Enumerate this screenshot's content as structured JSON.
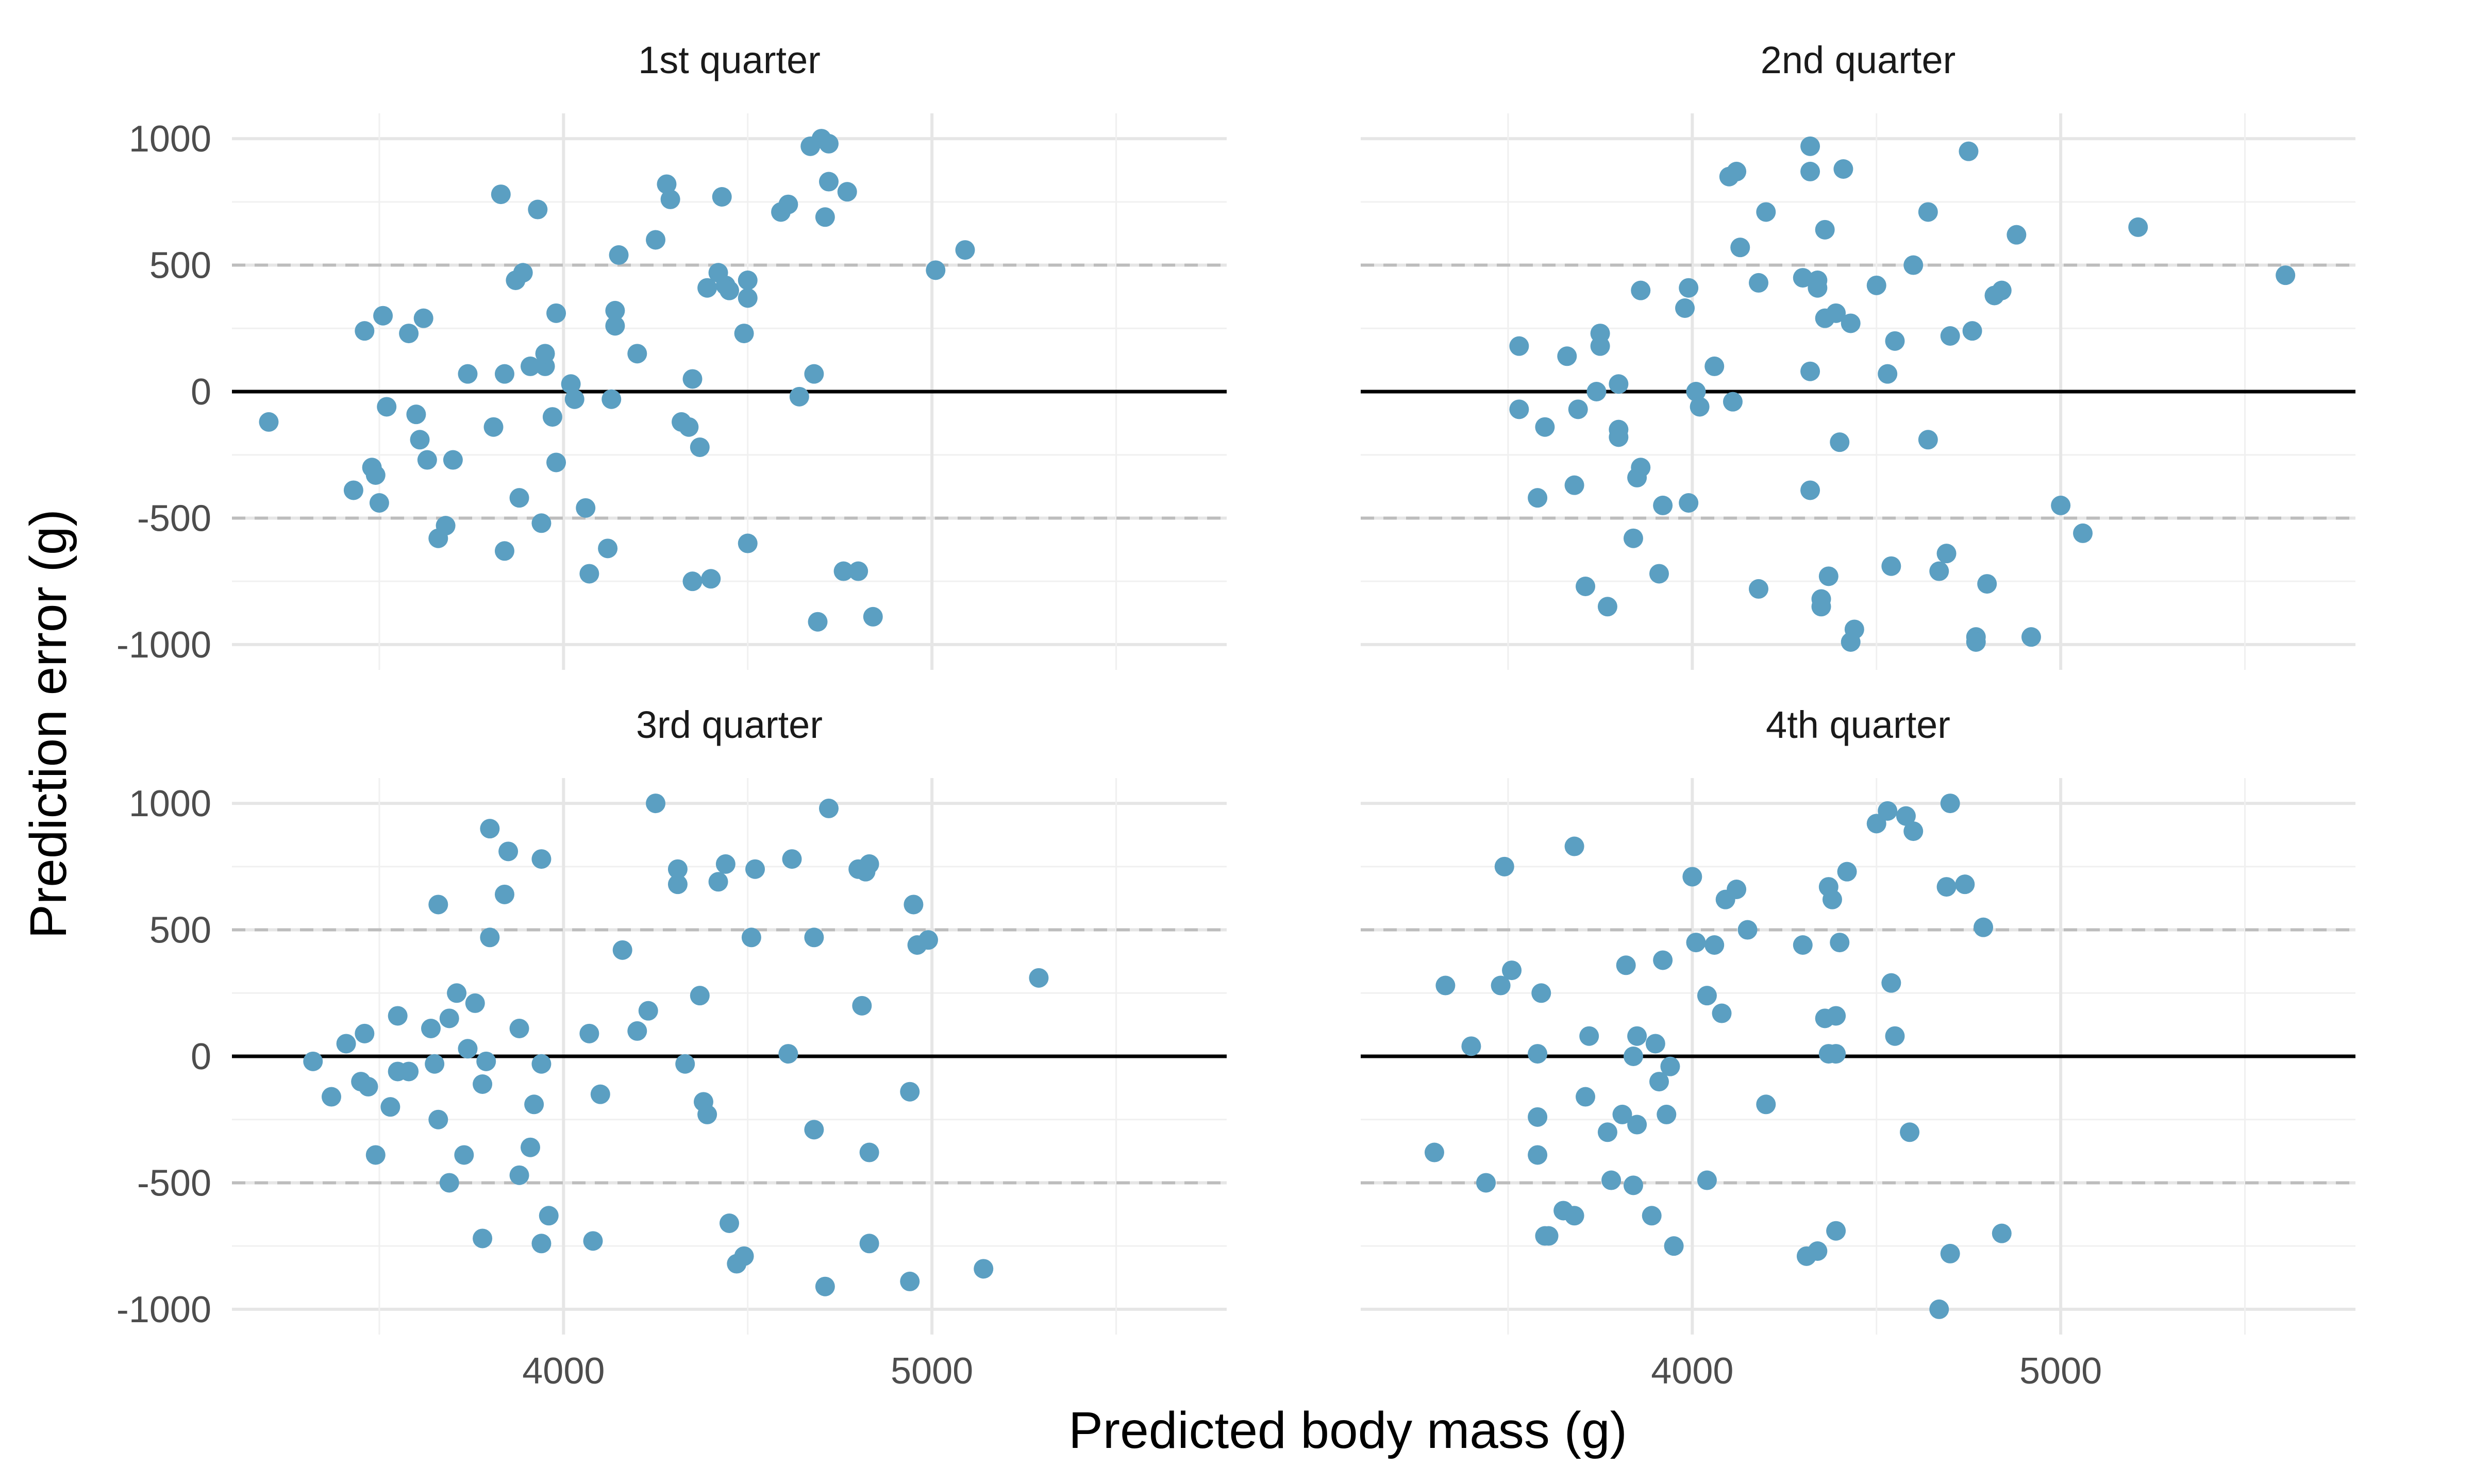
{
  "chart_data": {
    "type": "scatter",
    "xlabel": "Predicted body mass (g)",
    "ylabel": "Prediction error (g)",
    "x_ticks": [
      4000,
      5000
    ],
    "y_ticks": [
      -1000,
      -500,
      0,
      500,
      1000
    ],
    "xlim": [
      3100,
      5800
    ],
    "ylim": [
      -1100,
      1100
    ],
    "reference_lines": {
      "solid": 0,
      "dashed": [
        -500,
        500
      ]
    },
    "point_color": "#5B9FC2",
    "grid": true,
    "panels": [
      {
        "title": "1st quarter",
        "points": [
          [
            3200,
            -120
          ],
          [
            3430,
            -390
          ],
          [
            3460,
            240
          ],
          [
            3480,
            -300
          ],
          [
            3490,
            -330
          ],
          [
            3500,
            -440
          ],
          [
            3510,
            300
          ],
          [
            3520,
            -60
          ],
          [
            3580,
            230
          ],
          [
            3600,
            -90
          ],
          [
            3610,
            -190
          ],
          [
            3620,
            290
          ],
          [
            3630,
            -270
          ],
          [
            3660,
            -580
          ],
          [
            3680,
            -530
          ],
          [
            3700,
            -270
          ],
          [
            3740,
            70
          ],
          [
            3810,
            -140
          ],
          [
            3830,
            780
          ],
          [
            3840,
            -630
          ],
          [
            3840,
            70
          ],
          [
            3870,
            440
          ],
          [
            3880,
            -420
          ],
          [
            3890,
            470
          ],
          [
            3910,
            100
          ],
          [
            3930,
            720
          ],
          [
            3940,
            -520
          ],
          [
            3950,
            100
          ],
          [
            3950,
            150
          ],
          [
            3970,
            -100
          ],
          [
            3980,
            -280
          ],
          [
            3980,
            310
          ],
          [
            4020,
            30
          ],
          [
            4030,
            -30
          ],
          [
            4060,
            -460
          ],
          [
            4070,
            -720
          ],
          [
            4120,
            -620
          ],
          [
            4130,
            -30
          ],
          [
            4140,
            320
          ],
          [
            4140,
            260
          ],
          [
            4150,
            540
          ],
          [
            4200,
            150
          ],
          [
            4250,
            600
          ],
          [
            4280,
            820
          ],
          [
            4290,
            760
          ],
          [
            4320,
            -120
          ],
          [
            4340,
            -140
          ],
          [
            4350,
            50
          ],
          [
            4350,
            -750
          ],
          [
            4370,
            -220
          ],
          [
            4390,
            410
          ],
          [
            4400,
            -740
          ],
          [
            4420,
            470
          ],
          [
            4430,
            770
          ],
          [
            4440,
            420
          ],
          [
            4450,
            400
          ],
          [
            4490,
            230
          ],
          [
            4500,
            440
          ],
          [
            4500,
            370
          ],
          [
            4500,
            -600
          ],
          [
            4590,
            710
          ],
          [
            4610,
            740
          ],
          [
            4640,
            -20
          ],
          [
            4670,
            970
          ],
          [
            4680,
            70
          ],
          [
            4690,
            -910
          ],
          [
            4700,
            1000
          ],
          [
            4710,
            690
          ],
          [
            4720,
            980
          ],
          [
            4720,
            830
          ],
          [
            4760,
            -710
          ],
          [
            4770,
            790
          ],
          [
            4800,
            -710
          ],
          [
            4840,
            -890
          ],
          [
            5010,
            480
          ],
          [
            5090,
            560
          ]
        ]
      },
      {
        "title": "2nd quarter",
        "points": [
          [
            3530,
            180
          ],
          [
            3530,
            -70
          ],
          [
            3580,
            -420
          ],
          [
            3600,
            -140
          ],
          [
            3660,
            140
          ],
          [
            3680,
            -370
          ],
          [
            3690,
            -70
          ],
          [
            3710,
            -770
          ],
          [
            3740,
            0
          ],
          [
            3750,
            180
          ],
          [
            3750,
            230
          ],
          [
            3770,
            -850
          ],
          [
            3800,
            30
          ],
          [
            3800,
            -150
          ],
          [
            3800,
            -180
          ],
          [
            3840,
            -580
          ],
          [
            3850,
            -340
          ],
          [
            3860,
            -300
          ],
          [
            3860,
            400
          ],
          [
            3910,
            -720
          ],
          [
            3920,
            -450
          ],
          [
            3980,
            330
          ],
          [
            3990,
            410
          ],
          [
            3990,
            -440
          ],
          [
            4010,
            0
          ],
          [
            4020,
            -60
          ],
          [
            4060,
            100
          ],
          [
            4100,
            850
          ],
          [
            4110,
            -40
          ],
          [
            4120,
            870
          ],
          [
            4130,
            570
          ],
          [
            4180,
            430
          ],
          [
            4180,
            -780
          ],
          [
            4200,
            710
          ],
          [
            4300,
            450
          ],
          [
            4320,
            970
          ],
          [
            4320,
            -390
          ],
          [
            4320,
            870
          ],
          [
            4320,
            80
          ],
          [
            4340,
            410
          ],
          [
            4340,
            440
          ],
          [
            4350,
            -820
          ],
          [
            4350,
            -850
          ],
          [
            4360,
            290
          ],
          [
            4360,
            640
          ],
          [
            4370,
            -730
          ],
          [
            4390,
            310
          ],
          [
            4400,
            -200
          ],
          [
            4410,
            880
          ],
          [
            4430,
            -990
          ],
          [
            4430,
            270
          ],
          [
            4440,
            -940
          ],
          [
            4500,
            420
          ],
          [
            4530,
            70
          ],
          [
            4540,
            -690
          ],
          [
            4550,
            200
          ],
          [
            4600,
            500
          ],
          [
            4640,
            710
          ],
          [
            4640,
            -190
          ],
          [
            4670,
            -710
          ],
          [
            4690,
            -640
          ],
          [
            4700,
            220
          ],
          [
            4750,
            950
          ],
          [
            4760,
            240
          ],
          [
            4770,
            -970
          ],
          [
            4770,
            -990
          ],
          [
            4800,
            -760
          ],
          [
            4820,
            380
          ],
          [
            4840,
            400
          ],
          [
            4880,
            620
          ],
          [
            4920,
            -970
          ],
          [
            5000,
            -450
          ],
          [
            5060,
            -560
          ],
          [
            5210,
            650
          ],
          [
            5610,
            460
          ]
        ]
      },
      {
        "title": "3rd quarter",
        "points": [
          [
            3320,
            -20
          ],
          [
            3370,
            -160
          ],
          [
            3410,
            50
          ],
          [
            3450,
            -100
          ],
          [
            3460,
            90
          ],
          [
            3470,
            -120
          ],
          [
            3490,
            -390
          ],
          [
            3530,
            -200
          ],
          [
            3550,
            160
          ],
          [
            3550,
            -60
          ],
          [
            3580,
            -60
          ],
          [
            3640,
            110
          ],
          [
            3650,
            -30
          ],
          [
            3660,
            600
          ],
          [
            3660,
            -250
          ],
          [
            3690,
            150
          ],
          [
            3690,
            -500
          ],
          [
            3710,
            250
          ],
          [
            3730,
            -390
          ],
          [
            3740,
            30
          ],
          [
            3760,
            210
          ],
          [
            3780,
            -720
          ],
          [
            3780,
            -110
          ],
          [
            3790,
            -20
          ],
          [
            3800,
            900
          ],
          [
            3800,
            470
          ],
          [
            3840,
            640
          ],
          [
            3850,
            810
          ],
          [
            3880,
            110
          ],
          [
            3880,
            -470
          ],
          [
            3910,
            -360
          ],
          [
            3920,
            -190
          ],
          [
            3940,
            780
          ],
          [
            3940,
            -30
          ],
          [
            3940,
            -740
          ],
          [
            3960,
            -630
          ],
          [
            4070,
            90
          ],
          [
            4080,
            -730
          ],
          [
            4100,
            -150
          ],
          [
            4160,
            420
          ],
          [
            4200,
            100
          ],
          [
            4230,
            180
          ],
          [
            4250,
            1000
          ],
          [
            4310,
            680
          ],
          [
            4310,
            740
          ],
          [
            4330,
            -30
          ],
          [
            4370,
            240
          ],
          [
            4380,
            -180
          ],
          [
            4390,
            -230
          ],
          [
            4420,
            690
          ],
          [
            4440,
            760
          ],
          [
            4450,
            -660
          ],
          [
            4470,
            -820
          ],
          [
            4490,
            -790
          ],
          [
            4510,
            470
          ],
          [
            4520,
            740
          ],
          [
            4610,
            10
          ],
          [
            4620,
            780
          ],
          [
            4680,
            -290
          ],
          [
            4680,
            470
          ],
          [
            4710,
            -910
          ],
          [
            4720,
            980
          ],
          [
            4800,
            740
          ],
          [
            4810,
            200
          ],
          [
            4820,
            730
          ],
          [
            4830,
            760
          ],
          [
            4830,
            -380
          ],
          [
            4830,
            -740
          ],
          [
            4940,
            -890
          ],
          [
            4940,
            -140
          ],
          [
            4950,
            600
          ],
          [
            4960,
            440
          ],
          [
            4990,
            460
          ],
          [
            5140,
            -840
          ],
          [
            5290,
            310
          ]
        ]
      },
      {
        "title": "4th quarter",
        "points": [
          [
            3300,
            -380
          ],
          [
            3330,
            280
          ],
          [
            3400,
            40
          ],
          [
            3440,
            -500
          ],
          [
            3480,
            280
          ],
          [
            3490,
            750
          ],
          [
            3510,
            340
          ],
          [
            3580,
            -240
          ],
          [
            3580,
            -390
          ],
          [
            3580,
            10
          ],
          [
            3590,
            250
          ],
          [
            3600,
            -710
          ],
          [
            3610,
            -710
          ],
          [
            3650,
            -610
          ],
          [
            3680,
            -630
          ],
          [
            3680,
            830
          ],
          [
            3710,
            -160
          ],
          [
            3720,
            80
          ],
          [
            3770,
            -300
          ],
          [
            3780,
            -490
          ],
          [
            3810,
            -230
          ],
          [
            3820,
            360
          ],
          [
            3840,
            0
          ],
          [
            3840,
            -510
          ],
          [
            3850,
            80
          ],
          [
            3850,
            -270
          ],
          [
            3890,
            -630
          ],
          [
            3900,
            50
          ],
          [
            3910,
            -100
          ],
          [
            3920,
            380
          ],
          [
            3930,
            -230
          ],
          [
            3940,
            -40
          ],
          [
            3950,
            -750
          ],
          [
            4000,
            710
          ],
          [
            4010,
            450
          ],
          [
            4040,
            240
          ],
          [
            4040,
            -490
          ],
          [
            4060,
            440
          ],
          [
            4080,
            170
          ],
          [
            4090,
            620
          ],
          [
            4120,
            660
          ],
          [
            4150,
            500
          ],
          [
            4200,
            -190
          ],
          [
            4300,
            440
          ],
          [
            4310,
            -790
          ],
          [
            4340,
            -770
          ],
          [
            4360,
            150
          ],
          [
            4370,
            10
          ],
          [
            4370,
            670
          ],
          [
            4380,
            620
          ],
          [
            4390,
            10
          ],
          [
            4390,
            -690
          ],
          [
            4390,
            160
          ],
          [
            4400,
            450
          ],
          [
            4420,
            730
          ],
          [
            4500,
            920
          ],
          [
            4530,
            970
          ],
          [
            4540,
            290
          ],
          [
            4550,
            80
          ],
          [
            4580,
            950
          ],
          [
            4590,
            -300
          ],
          [
            4600,
            890
          ],
          [
            4670,
            -1000
          ],
          [
            4690,
            670
          ],
          [
            4700,
            -780
          ],
          [
            4700,
            1000
          ],
          [
            4740,
            680
          ],
          [
            4790,
            510
          ],
          [
            4840,
            -700
          ]
        ]
      }
    ]
  }
}
